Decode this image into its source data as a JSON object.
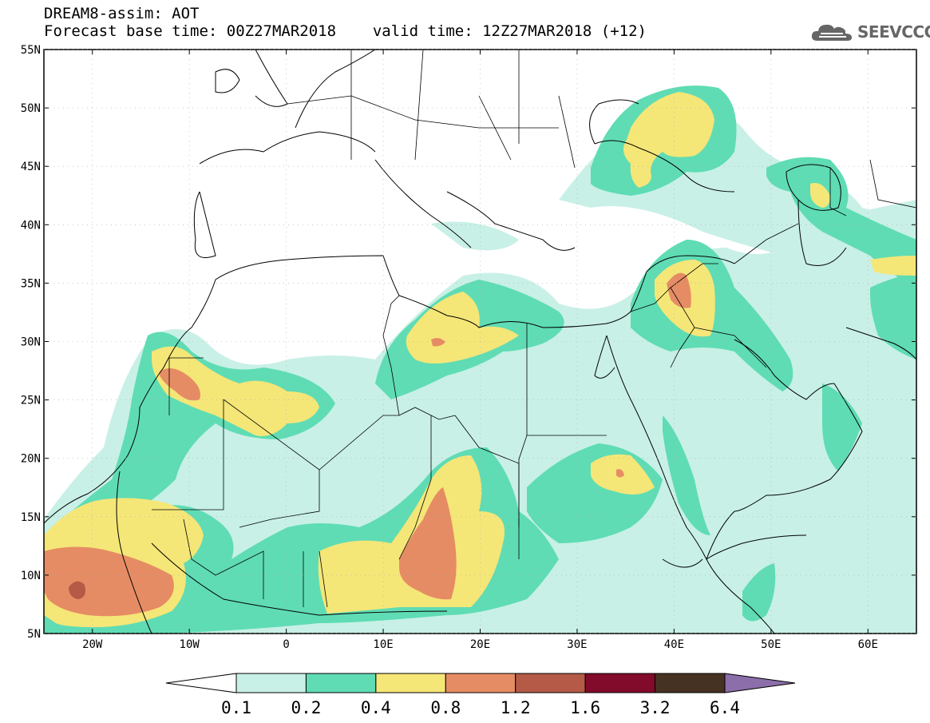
{
  "header": {
    "title": "DREAM8-assim: AOT",
    "base_time_label": "Forecast base time: 00Z27MAR2018",
    "valid_time_label": "valid time: 12Z27MAR2018 (+12)"
  },
  "logo": {
    "text": "SEEVCCC",
    "icon": "cloud-icon"
  },
  "map": {
    "lat_ticks": [
      "55N",
      "50N",
      "45N",
      "40N",
      "35N",
      "30N",
      "25N",
      "20N",
      "15N",
      "10N",
      "5N"
    ],
    "lon_ticks": [
      "20W",
      "10W",
      "0",
      "10E",
      "20E",
      "30E",
      "40E",
      "50E",
      "60E"
    ],
    "lon_range": [
      -25,
      65
    ],
    "lat_range": [
      5,
      55
    ]
  },
  "colorbar": {
    "labels": [
      "0.1",
      "0.2",
      "0.4",
      "0.8",
      "1.2",
      "1.6",
      "3.2",
      "6.4"
    ],
    "colors": [
      "#c8f0e6",
      "#5fdcb4",
      "#f5e678",
      "#e68c64",
      "#b45a46",
      "#820a2a",
      "#463223",
      "#8c6eaa"
    ]
  },
  "colors": {
    "lev1": "#c8f0e6",
    "lev2": "#5fdcb4",
    "lev3": "#f5e678",
    "lev4": "#e68c64",
    "lev5": "#b45a46"
  }
}
